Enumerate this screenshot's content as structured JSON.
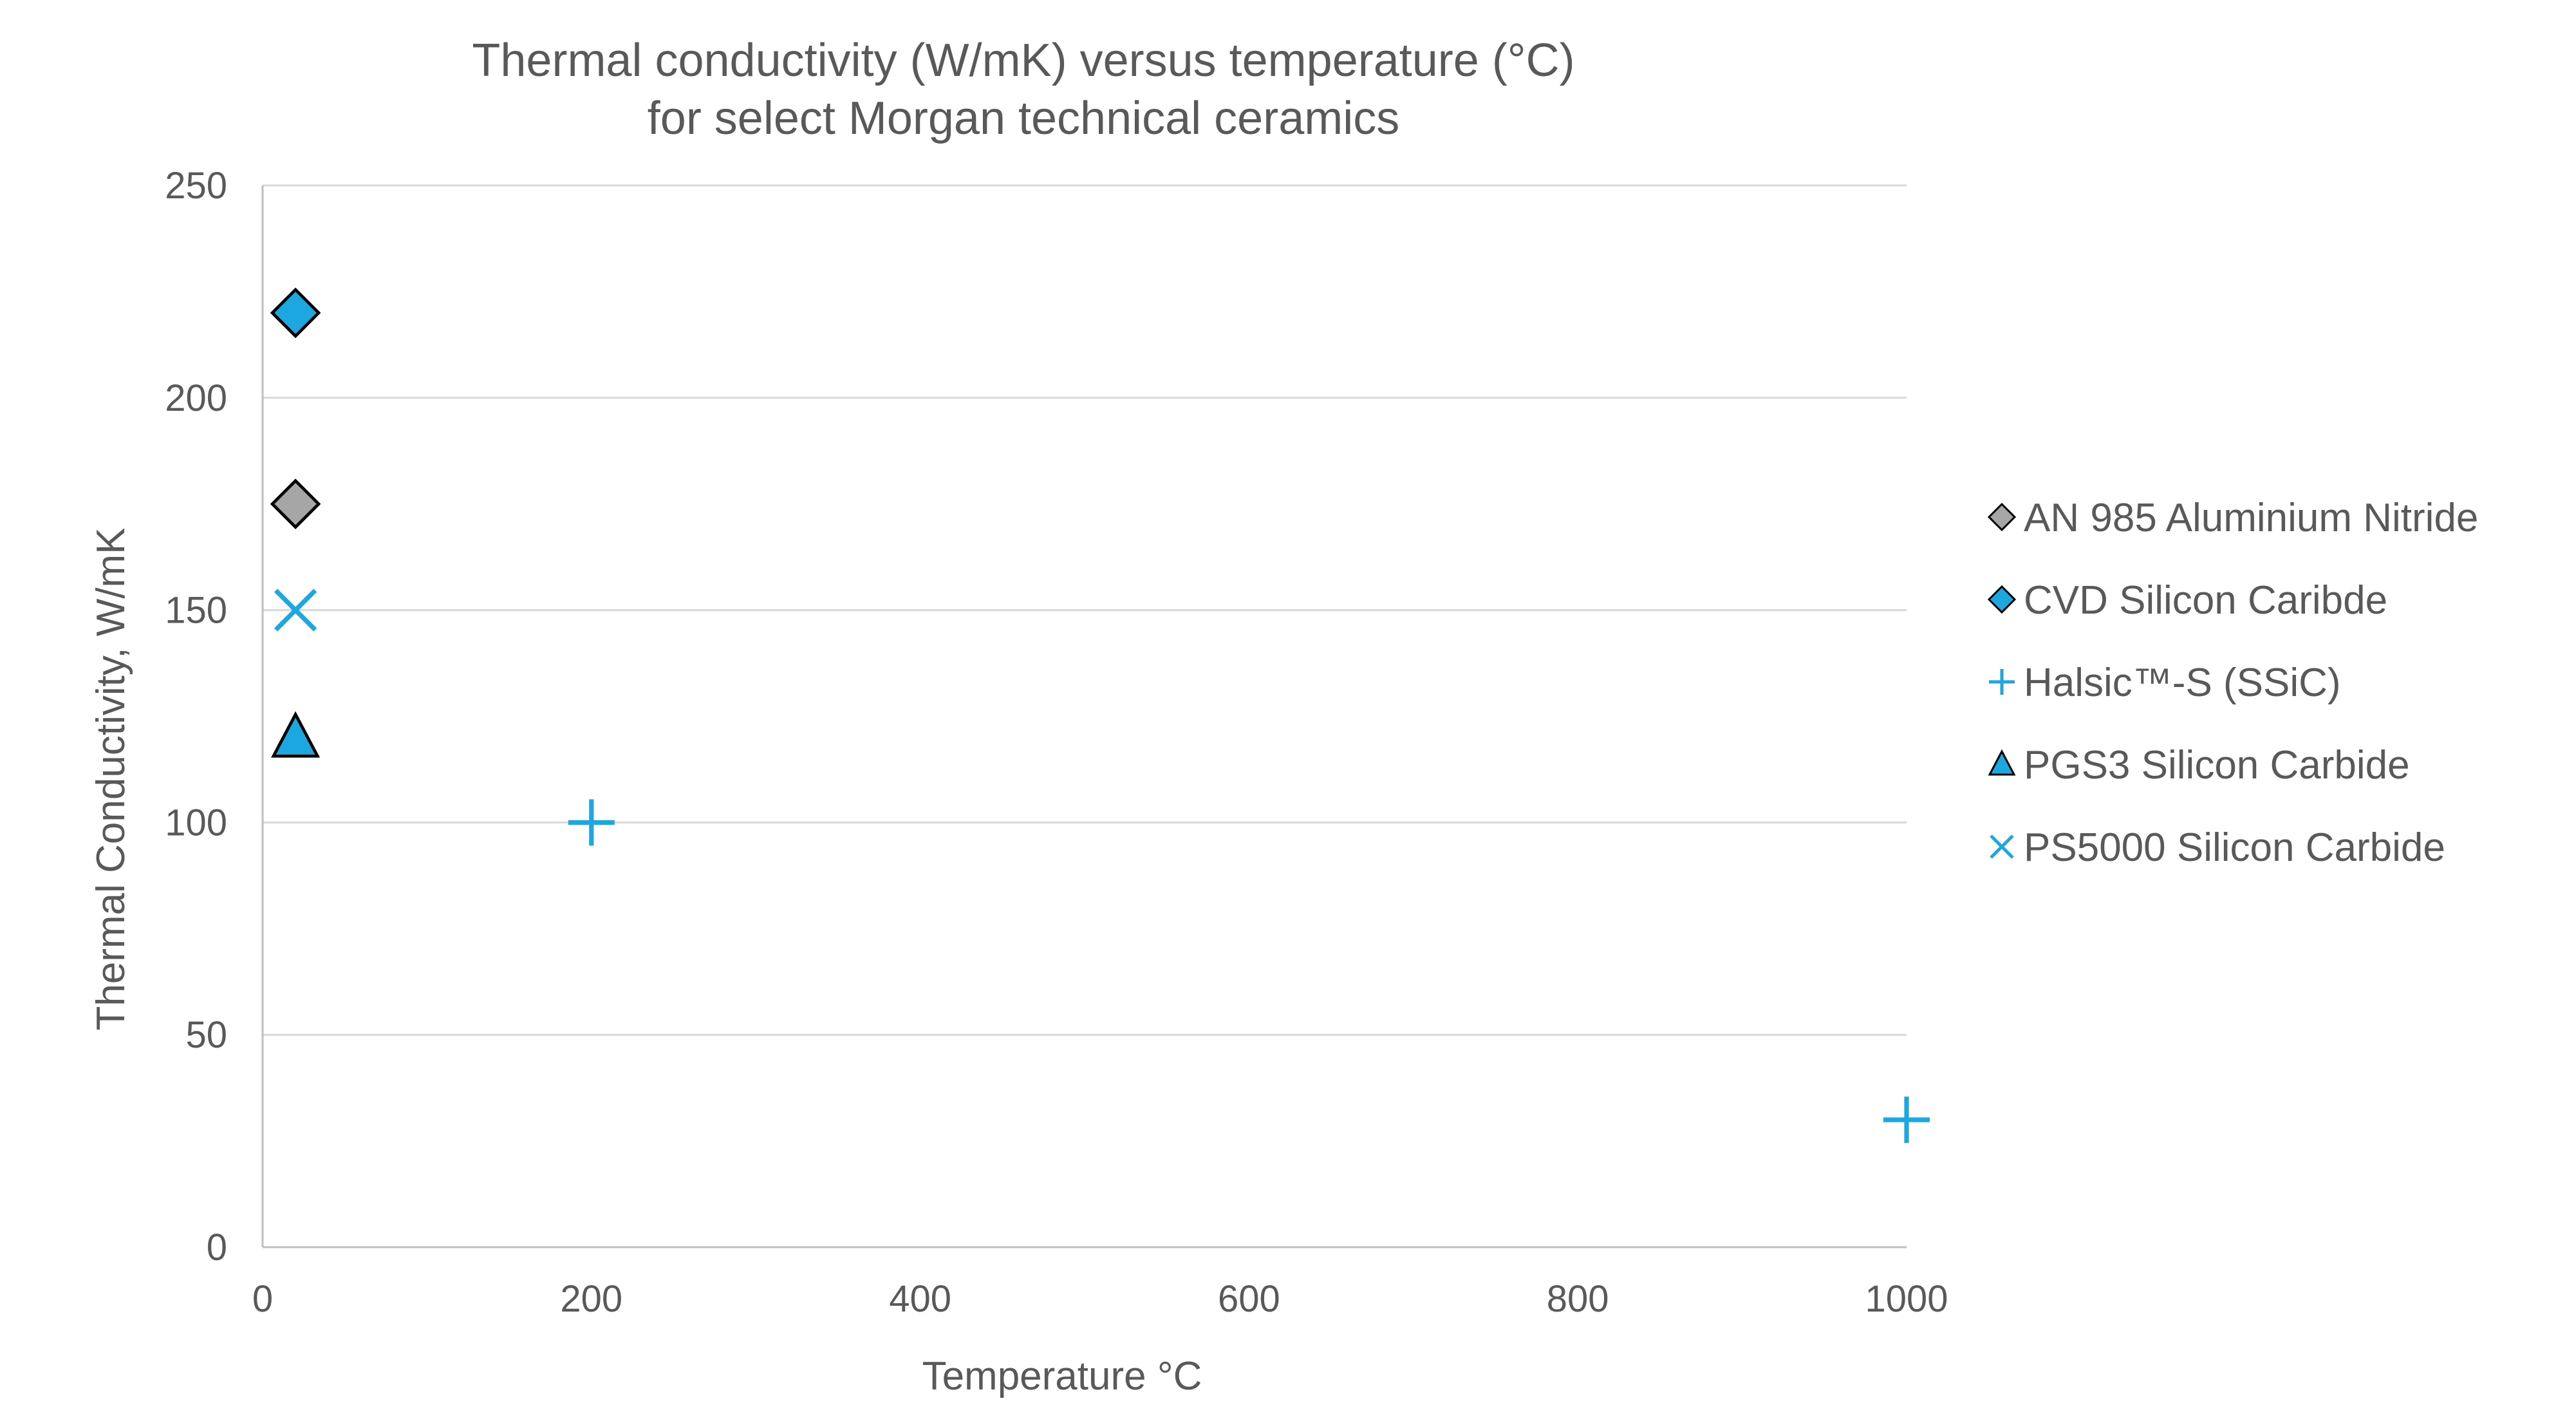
{
  "chart_data": {
    "type": "scatter",
    "title": [
      "Thermal conductivity (W/mK) versus temperature (°C)",
      "for select Morgan technical ceramics"
    ],
    "xlabel": "Temperature °C",
    "ylabel": "Thermal Conductivity, W/mK",
    "xlim": [
      0,
      1000
    ],
    "ylim": [
      0,
      250
    ],
    "xticks": [
      0,
      200,
      400,
      600,
      800,
      1000
    ],
    "yticks": [
      0,
      50,
      100,
      150,
      200,
      250
    ],
    "grid": "horizontal",
    "legend_position": "right",
    "series": [
      {
        "name": "AN 985 Aluminium Nitride",
        "marker": "diamond",
        "color": "#a6a6a6",
        "points": [
          {
            "x": 20,
            "y": 175
          }
        ]
      },
      {
        "name": "CVD Silicon Caribde",
        "marker": "diamond",
        "color": "#1ca7e0",
        "points": [
          {
            "x": 20,
            "y": 220
          }
        ]
      },
      {
        "name": "Halsic™-S (SSiC)",
        "marker": "plus",
        "color": "#1ca7e0",
        "points": [
          {
            "x": 200,
            "y": 100
          },
          {
            "x": 1000,
            "y": 30
          }
        ]
      },
      {
        "name": "PGS3 Silicon Carbide",
        "marker": "triangle",
        "color": "#1ca7e0",
        "points": [
          {
            "x": 20,
            "y": 120
          }
        ]
      },
      {
        "name": "PS5000 Silicon Carbide",
        "marker": "x",
        "color": "#1ca7e0",
        "points": [
          {
            "x": 20,
            "y": 150
          }
        ]
      }
    ]
  }
}
